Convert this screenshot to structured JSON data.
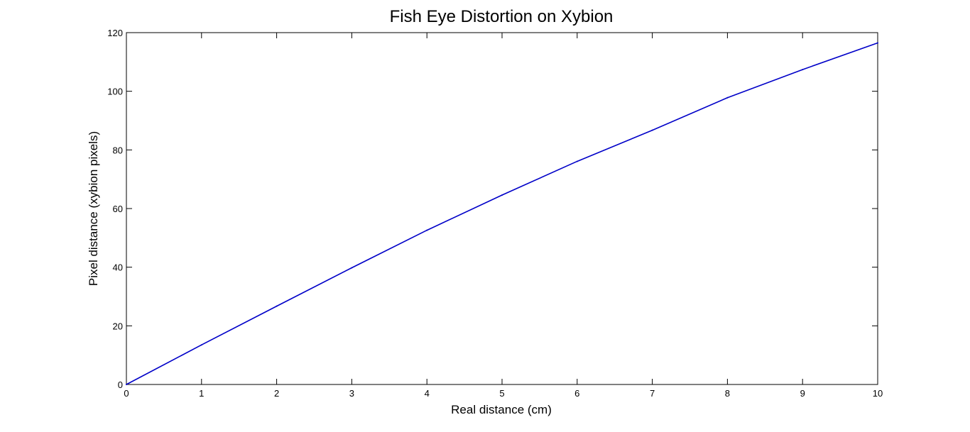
{
  "chart_data": {
    "type": "line",
    "title": "Fish Eye Distortion on Xybion",
    "xlabel": "Real distance (cm)",
    "ylabel": "Pixel distance (xybion pixels)",
    "xlim": [
      0,
      10
    ],
    "ylim": [
      0,
      120
    ],
    "xticks": [
      0,
      1,
      2,
      3,
      4,
      5,
      6,
      7,
      8,
      9,
      10
    ],
    "yticks": [
      0,
      20,
      40,
      60,
      80,
      100,
      120
    ],
    "grid": false,
    "legend": "none",
    "colors": {
      "line": "#0000c8",
      "axes": "#000000",
      "background": "#ffffff"
    },
    "series": [
      {
        "x": [
          0,
          1,
          2,
          3,
          4,
          5,
          6,
          7,
          8,
          9,
          10
        ],
        "y": [
          0,
          13.5,
          26.7,
          39.8,
          52.6,
          64.6,
          76.1,
          86.7,
          97.8,
          107.4,
          116.5
        ]
      }
    ]
  }
}
